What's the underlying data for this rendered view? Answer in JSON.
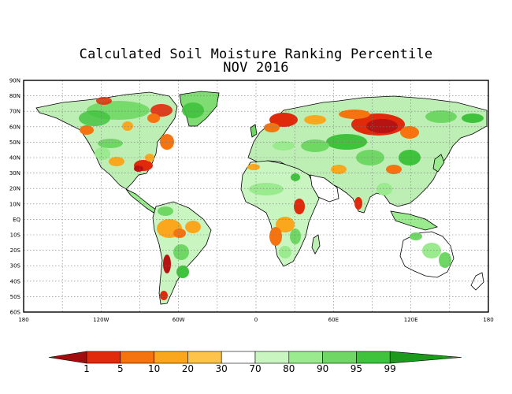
{
  "title": "Calculated Soil Moisture Ranking Percentile",
  "subtitle": "NOV 2016",
  "lat_labels": [
    "90N",
    "80N",
    "70N",
    "60N",
    "50N",
    "40N",
    "30N",
    "20N",
    "10N",
    "EQ",
    "10S",
    "20S",
    "30S",
    "40S",
    "50S",
    "60S"
  ],
  "lon_labels": [
    "180",
    "120W",
    "60W",
    "0",
    "60E",
    "120E",
    "180"
  ],
  "colorbar": {
    "labels": [
      "1",
      "5",
      "10",
      "20",
      "30",
      "70",
      "80",
      "90",
      "95",
      "99"
    ],
    "colors": [
      "#b81313",
      "#e02a0b",
      "#f5740f",
      "#fba71d",
      "#fdc34a",
      "#ffffff",
      "#c8f5c0",
      "#9aea8e",
      "#6fd864",
      "#3fc23c",
      "#1ea01e"
    ],
    "low_color": "#a10c0c",
    "high_color": "#1b9a1b"
  },
  "chart_data": {
    "type": "heatmap",
    "title": "Calculated Soil Moisture Ranking Percentile",
    "subtitle": "NOV 2016",
    "x_range": [
      -180,
      180
    ],
    "y_range": [
      -60,
      90
    ],
    "grid": true,
    "colorbar_boundaries": [
      1,
      5,
      10,
      20,
      30,
      70,
      80,
      90,
      95,
      99
    ]
  }
}
